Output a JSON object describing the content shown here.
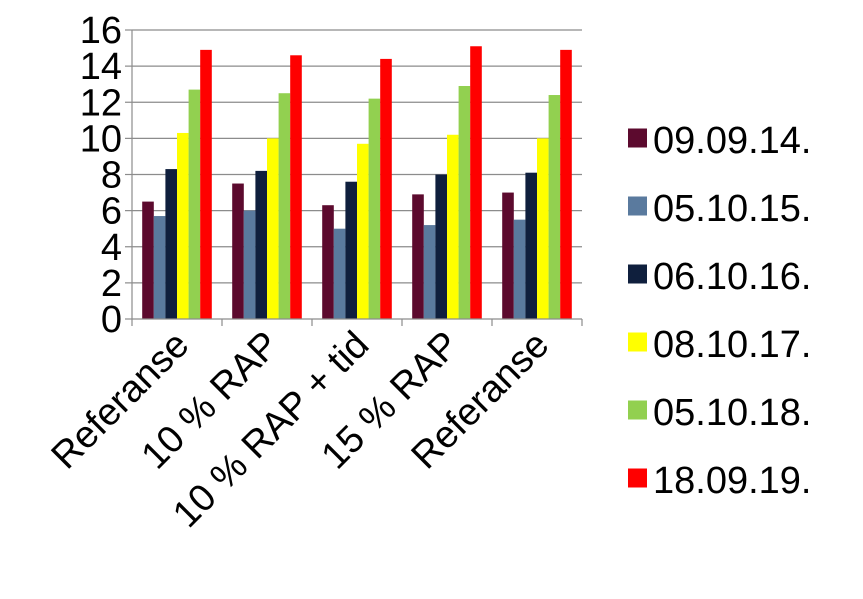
{
  "chart_data": {
    "type": "bar",
    "title": "",
    "xlabel": "",
    "ylabel": "",
    "ylim": [
      0,
      16
    ],
    "yticks": [
      0,
      2,
      4,
      6,
      8,
      10,
      12,
      14,
      16
    ],
    "grid": true,
    "legend_position": "right",
    "categories": [
      "Referanse",
      "10 % RAP",
      "10 % RAP + tid",
      "15 % RAP",
      "Referanse"
    ],
    "series": [
      {
        "name": "09.09.14.",
        "color": "#5c0a2e",
        "values": [
          6.5,
          7.5,
          6.3,
          6.9,
          7.0
        ]
      },
      {
        "name": "05.10.15.",
        "color": "#5a7a9e",
        "values": [
          5.7,
          6.0,
          5.0,
          5.2,
          5.5
        ]
      },
      {
        "name": "06.10.16.",
        "color": "#0f1f3d",
        "values": [
          8.3,
          8.2,
          7.6,
          8.0,
          8.1
        ]
      },
      {
        "name": "08.10.17.",
        "color": "#ffff00",
        "values": [
          10.3,
          10.0,
          9.7,
          10.2,
          10.0
        ]
      },
      {
        "name": "05.10.18.",
        "color": "#92d050",
        "values": [
          12.7,
          12.5,
          12.2,
          12.9,
          12.4
        ]
      },
      {
        "name": "18.09.19.",
        "color": "#ff0000",
        "values": [
          14.9,
          14.6,
          14.4,
          15.1,
          14.9
        ]
      }
    ]
  }
}
